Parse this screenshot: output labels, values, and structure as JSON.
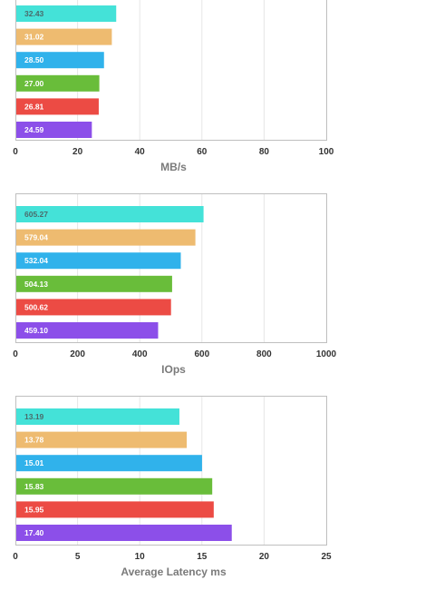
{
  "colors": [
    "#44E2D8",
    "#EEBB70",
    "#30B2EB",
    "#69BD3A",
    "#EC4B44",
    "#8C4FE9"
  ],
  "chart_data": [
    {
      "type": "bar",
      "orientation": "horizontal",
      "xlabel": "MB/s",
      "xlim": [
        0,
        100
      ],
      "xticks": [
        "0",
        "20",
        "40",
        "60",
        "80",
        "100"
      ],
      "values": [
        32.43,
        31.02,
        28.5,
        27.0,
        26.81,
        24.59
      ],
      "labels": [
        "32.43",
        "31.02",
        "28.50",
        "27.00",
        "26.81",
        "24.59"
      ],
      "grid": true
    },
    {
      "type": "bar",
      "orientation": "horizontal",
      "xlabel": "IOps",
      "xlim": [
        0,
        1000
      ],
      "xticks": [
        "0",
        "200",
        "400",
        "600",
        "800",
        "1000"
      ],
      "values": [
        605.27,
        579.04,
        532.04,
        504.13,
        500.62,
        459.1
      ],
      "labels": [
        "605.27",
        "579.04",
        "532.04",
        "504.13",
        "500.62",
        "459.10"
      ],
      "grid": true
    },
    {
      "type": "bar",
      "orientation": "horizontal",
      "xlabel": "Average Latency ms",
      "xlim": [
        0,
        25
      ],
      "xticks": [
        "0",
        "5",
        "10",
        "15",
        "20",
        "25"
      ],
      "values": [
        13.19,
        13.78,
        15.01,
        15.83,
        15.95,
        17.4
      ],
      "labels": [
        "13.19",
        "13.78",
        "15.01",
        "15.83",
        "15.95",
        "17.40"
      ],
      "grid": true
    }
  ]
}
